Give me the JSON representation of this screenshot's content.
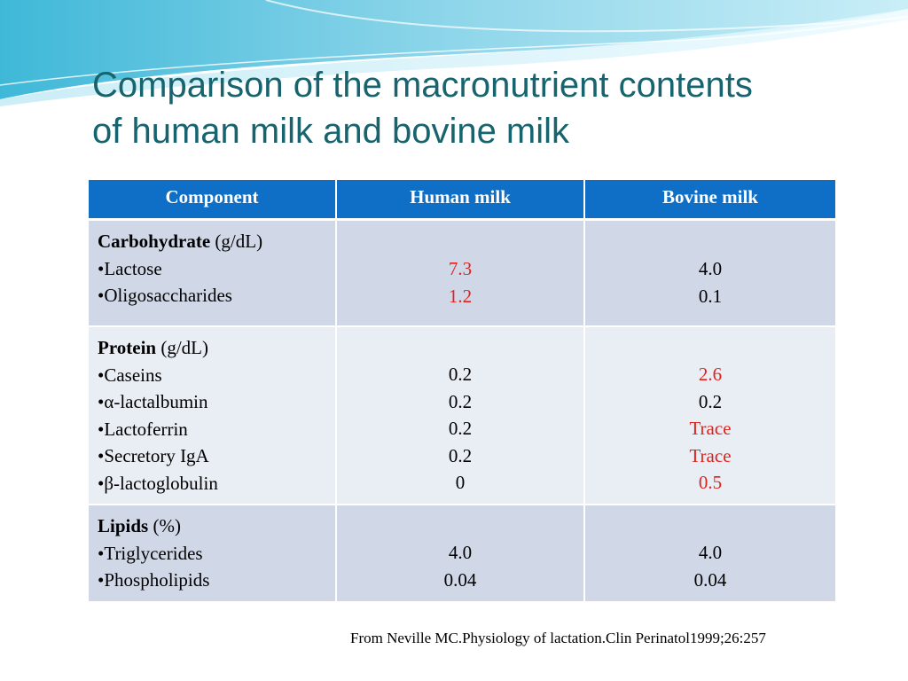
{
  "slide": {
    "title_line1": "Comparison of the macronutrient contents",
    "title_line2": "of human milk and bovine milk"
  },
  "table": {
    "headers": [
      "Component",
      "Human milk",
      "Bovine milk"
    ],
    "rows": [
      {
        "group": "Carbohydrate",
        "unit": " (g/dL)",
        "items": [
          "•Lactose",
          "•Oligosaccharides"
        ],
        "human": [
          {
            "value": "7.3",
            "highlight": true
          },
          {
            "value": "1.2",
            "highlight": true
          }
        ],
        "bovine": [
          {
            "value": "4.0",
            "highlight": false
          },
          {
            "value": "0.1",
            "highlight": false
          }
        ]
      },
      {
        "group": "Protein",
        "unit": " (g/dL)",
        "items": [
          "•Caseins",
          "•α-lactalbumin",
          "•Lactoferrin",
          "•Secretory IgA",
          "•β-lactoglobulin"
        ],
        "human": [
          {
            "value": "0.2",
            "highlight": false
          },
          {
            "value": "0.2",
            "highlight": false
          },
          {
            "value": "0.2",
            "highlight": false
          },
          {
            "value": "0.2",
            "highlight": false
          },
          {
            "value": "0",
            "highlight": false
          }
        ],
        "bovine": [
          {
            "value": "2.6",
            "highlight": true
          },
          {
            "value": "0.2",
            "highlight": false
          },
          {
            "value": "Trace",
            "highlight": true
          },
          {
            "value": "Trace",
            "highlight": true
          },
          {
            "value": "0.5",
            "highlight": true
          }
        ]
      },
      {
        "group": "Lipids",
        "unit": " (%)",
        "items": [
          "•Triglycerides",
          "•Phospholipids"
        ],
        "human": [
          {
            "value": "4.0",
            "highlight": false
          },
          {
            "value": "0.04",
            "highlight": false
          }
        ],
        "bovine": [
          {
            "value": "4.0",
            "highlight": false
          },
          {
            "value": "0.04",
            "highlight": false
          }
        ]
      }
    ]
  },
  "source": "From Neville MC.Physiology of lactation.Clin Perinatol1999;26:257",
  "colors": {
    "header_bg": "#0f6fc6",
    "title": "#17646e",
    "highlight": "#e2211c",
    "row_dark": "#d0d8e8",
    "row_light": "#e9edf4"
  }
}
